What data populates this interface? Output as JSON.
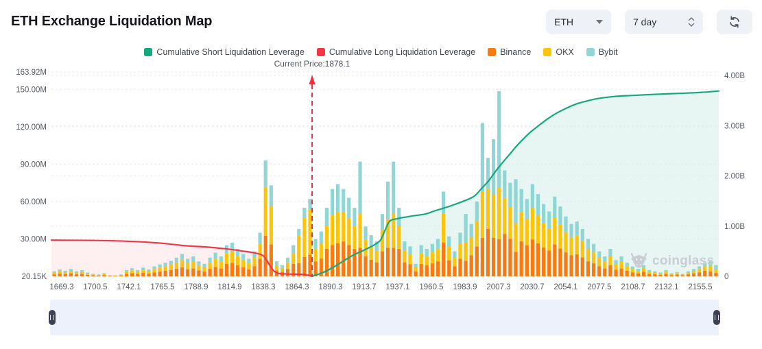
{
  "header": {
    "title": "ETH Exchange Liquidation Map"
  },
  "controls": {
    "symbol_value": "ETH",
    "period_value": "7 day"
  },
  "watermark": {
    "text": "coinglass"
  },
  "legend": {
    "items": [
      {
        "label": "Cumulative Short Liquidation Leverage",
        "color": "#14a87f"
      },
      {
        "label": "Cumulative Long Liquidation Leverage",
        "color": "#f23645"
      },
      {
        "label": "Binance",
        "color": "#f97b0f"
      },
      {
        "label": "OKX",
        "color": "#fcc40a"
      },
      {
        "label": "Bybit",
        "color": "#8fd6d5"
      }
    ]
  },
  "chart_data": {
    "type": "bar",
    "stacked": true,
    "title": "ETH Exchange Liquidation Map",
    "legend_position": "top",
    "grid": "dashed",
    "current_price": {
      "label": "Current Price:1878.1",
      "value": 1878.1,
      "frac": 0.3906,
      "color": "#ee303e"
    },
    "x_axis": {
      "labels": [
        "1669.3",
        "1700.5",
        "1742.1",
        "1765.5",
        "1788.9",
        "1814.9",
        "1838.3",
        "1864.3",
        "1890.3",
        "1913.7",
        "1937.1",
        "1960.5",
        "1983.9",
        "2007.3",
        "2030.7",
        "2054.1",
        "2077.5",
        "2108.7",
        "2132.1",
        "2155.5"
      ],
      "first_frac": 0.0154,
      "step_frac": 0.05036
    },
    "left_axis": {
      "unit": "M",
      "max": 163.92,
      "ticks": [
        {
          "label": "163.92M",
          "v": 163.92
        },
        {
          "label": "150.00M",
          "v": 150
        },
        {
          "label": "120.00M",
          "v": 120
        },
        {
          "label": "90.00M",
          "v": 90
        },
        {
          "label": "60.00M",
          "v": 60
        },
        {
          "label": "30.00M",
          "v": 30
        },
        {
          "label": "20.15K",
          "v": 0.02
        }
      ]
    },
    "right_axis": {
      "unit": "B",
      "max": 4,
      "ticks": [
        {
          "label": "4.00B",
          "v": 4
        },
        {
          "label": "3.00B",
          "v": 3
        },
        {
          "label": "2.00B",
          "v": 2
        },
        {
          "label": "1.00B",
          "v": 1
        },
        {
          "label": "0",
          "v": 0
        }
      ]
    },
    "bar_series": {
      "names": [
        "Binance",
        "OKX",
        "Bybit"
      ],
      "colors": [
        "#f97b0f",
        "#fcc40a",
        "#8fd6d5"
      ],
      "unit": "M",
      "stacks": [
        [
          1.6,
          1.4,
          1.0
        ],
        [
          2.2,
          1.9,
          1.4
        ],
        [
          1.8,
          1.5,
          1.2
        ],
        [
          2.4,
          2.0,
          1.6
        ],
        [
          1.6,
          1.4,
          1.0
        ],
        [
          2.0,
          1.7,
          1.3
        ],
        [
          1.2,
          1.0,
          0.8
        ],
        [
          0.8,
          0.7,
          0.5
        ],
        [
          0.6,
          0.5,
          0.4
        ],
        [
          1.0,
          0.9,
          0.6
        ],
        [
          0.4,
          0.3,
          0.3
        ],
        [
          0.3,
          0.3,
          0.2
        ],
        [
          0.6,
          0.5,
          0.4
        ],
        [
          2.0,
          1.7,
          1.3
        ],
        [
          2.6,
          2.2,
          1.7
        ],
        [
          2.0,
          1.7,
          1.3
        ],
        [
          2.8,
          2.4,
          1.8
        ],
        [
          2.2,
          1.9,
          1.4
        ],
        [
          3.2,
          2.7,
          2.1
        ],
        [
          3.8,
          3.2,
          2.5
        ],
        [
          4.4,
          3.7,
          2.9
        ],
        [
          5.0,
          4.3,
          3.2
        ],
        [
          6.0,
          5.1,
          3.9
        ],
        [
          7.2,
          6.1,
          4.7
        ],
        [
          5.6,
          4.8,
          3.6
        ],
        [
          6.4,
          5.4,
          4.2
        ],
        [
          4.8,
          4.1,
          3.1
        ],
        [
          4.0,
          3.4,
          2.6
        ],
        [
          6.0,
          5.1,
          3.9
        ],
        [
          7.6,
          6.5,
          4.9
        ],
        [
          6.4,
          5.4,
          4.2
        ],
        [
          10.0,
          8.5,
          6.5
        ],
        [
          10.8,
          9.2,
          7.0
        ],
        [
          8.8,
          7.5,
          5.7
        ],
        [
          7.2,
          6.1,
          4.7
        ],
        [
          5.6,
          4.8,
          3.6
        ],
        [
          8.0,
          6.8,
          5.2
        ],
        [
          14.0,
          11.9,
          9.1
        ],
        [
          32.6,
          39.1,
          21.3
        ],
        [
          25.6,
          30.7,
          16.7
        ],
        [
          4.8,
          4.1,
          3.1
        ],
        [
          3.6,
          3.1,
          2.3
        ],
        [
          6.0,
          5.1,
          3.9
        ],
        [
          10.0,
          8.5,
          6.5
        ],
        [
          10.6,
          22.0,
          5.4
        ],
        [
          15.4,
          31.9,
          7.7
        ],
        [
          17.4,
          36.0,
          8.6
        ],
        [
          12.0,
          10.2,
          7.8
        ],
        [
          14.4,
          12.2,
          9.4
        ],
        [
          22.0,
          18.7,
          14.3
        ],
        [
          25.2,
          23.8,
          21.0
        ],
        [
          26.6,
          25.2,
          22.2
        ],
        [
          28.0,
          23.8,
          18.2
        ],
        [
          25.2,
          21.4,
          16.4
        ],
        [
          22.0,
          18.7,
          14.3
        ],
        [
          23.0,
          27.6,
          41.4
        ],
        [
          16.0,
          13.6,
          10.4
        ],
        [
          13.2,
          11.2,
          8.6
        ],
        [
          11.2,
          9.5,
          7.3
        ],
        [
          20.0,
          17.0,
          13.0
        ],
        [
          22.8,
          22.8,
          30.4
        ],
        [
          23.0,
          27.6,
          41.4
        ],
        [
          22.0,
          18.7,
          14.3
        ],
        [
          11.2,
          9.5,
          7.3
        ],
        [
          9.6,
          8.2,
          6.2
        ],
        [
          4.0,
          3.4,
          2.6
        ],
        [
          10.0,
          8.5,
          6.5
        ],
        [
          8.8,
          7.5,
          5.7
        ],
        [
          10.4,
          8.8,
          6.8
        ],
        [
          12.0,
          10.2,
          7.8
        ],
        [
          27.2,
          23.1,
          17.7
        ],
        [
          12.8,
          10.9,
          8.3
        ],
        [
          8.0,
          6.8,
          5.2
        ],
        [
          14.0,
          11.9,
          9.1
        ],
        [
          12.5,
          15.0,
          22.5
        ],
        [
          16.8,
          14.3,
          10.9
        ],
        [
          24.0,
          20.4,
          15.6
        ],
        [
          30.8,
          36.9,
          55.3
        ],
        [
          38.0,
          32.3,
          24.7
        ],
        [
          30.8,
          35.2,
          44.0
        ],
        [
          29.7,
          41.6,
          77.2
        ],
        [
          34.0,
          28.9,
          22.1
        ],
        [
          30.0,
          25.5,
          19.5
        ],
        [
          19.5,
          23.4,
          35.1
        ],
        [
          28.0,
          23.8,
          18.2
        ],
        [
          24.8,
          21.1,
          16.1
        ],
        [
          29.6,
          25.2,
          19.2
        ],
        [
          26.4,
          22.4,
          17.2
        ],
        [
          23.2,
          19.7,
          15.1
        ],
        [
          20.8,
          17.7,
          13.5
        ],
        [
          25.6,
          21.8,
          16.6
        ],
        [
          22.4,
          19.0,
          14.6
        ],
        [
          19.2,
          16.3,
          12.5
        ],
        [
          16.8,
          14.3,
          10.9
        ],
        [
          17.6,
          15.0,
          11.4
        ],
        [
          15.2,
          12.9,
          9.9
        ],
        [
          12.0,
          10.2,
          7.8
        ],
        [
          10.4,
          8.8,
          6.8
        ],
        [
          8.0,
          6.8,
          5.2
        ],
        [
          6.4,
          5.4,
          4.2
        ],
        [
          8.8,
          7.5,
          5.7
        ],
        [
          5.2,
          4.4,
          3.4
        ],
        [
          6.4,
          5.4,
          4.2
        ],
        [
          4.4,
          3.7,
          2.9
        ],
        [
          3.2,
          2.7,
          2.1
        ],
        [
          2.4,
          2.0,
          1.6
        ],
        [
          3.6,
          3.1,
          2.3
        ],
        [
          2.0,
          1.7,
          1.3
        ],
        [
          1.6,
          1.4,
          1.0
        ],
        [
          1.2,
          1.0,
          0.8
        ],
        [
          2.0,
          1.7,
          1.3
        ],
        [
          1.0,
          0.9,
          0.6
        ],
        [
          1.4,
          1.2,
          0.9
        ],
        [
          0.8,
          0.7,
          0.5
        ],
        [
          1.6,
          1.4,
          1.0
        ],
        [
          2.4,
          2.0,
          1.6
        ],
        [
          3.2,
          2.7,
          2.1
        ],
        [
          4.4,
          3.7,
          2.9
        ],
        [
          3.9,
          4.3,
          4.8
        ],
        [
          2.7,
          3.0,
          3.3
        ]
      ]
    },
    "lines": [
      {
        "name": "Cumulative Long Liquidation Leverage",
        "axis": "right",
        "unit": "B",
        "color": "#f23645",
        "fill": "rgba(242,54,69,0.08)",
        "points": [
          [
            0.0,
            0.72
          ],
          [
            0.06,
            0.715
          ],
          [
            0.11,
            0.7
          ],
          [
            0.16,
            0.665
          ],
          [
            0.2,
            0.61
          ],
          [
            0.231,
            0.585
          ],
          [
            0.252,
            0.56
          ],
          [
            0.272,
            0.53
          ],
          [
            0.288,
            0.5
          ],
          [
            0.303,
            0.47
          ],
          [
            0.316,
            0.42
          ],
          [
            0.322,
            0.33
          ],
          [
            0.328,
            0.2
          ],
          [
            0.334,
            0.1
          ],
          [
            0.342,
            0.055
          ],
          [
            0.355,
            0.045
          ],
          [
            0.375,
            0.04
          ],
          [
            0.385,
            0.02
          ],
          [
            0.3906,
            0.0
          ]
        ]
      },
      {
        "name": "Cumulative Short Liquidation Leverage",
        "axis": "right",
        "unit": "B",
        "color": "#14a87f",
        "fill": "rgba(20,168,127,0.10)",
        "points": [
          [
            0.3906,
            0.0
          ],
          [
            0.406,
            0.07
          ],
          [
            0.421,
            0.17
          ],
          [
            0.437,
            0.3
          ],
          [
            0.452,
            0.42
          ],
          [
            0.468,
            0.52
          ],
          [
            0.483,
            0.62
          ],
          [
            0.493,
            0.72
          ],
          [
            0.5,
            0.92
          ],
          [
            0.507,
            1.1
          ],
          [
            0.519,
            1.15
          ],
          [
            0.54,
            1.2
          ],
          [
            0.56,
            1.24
          ],
          [
            0.576,
            1.31
          ],
          [
            0.591,
            1.37
          ],
          [
            0.606,
            1.44
          ],
          [
            0.622,
            1.52
          ],
          [
            0.634,
            1.6
          ],
          [
            0.644,
            1.74
          ],
          [
            0.655,
            1.9
          ],
          [
            0.665,
            2.08
          ],
          [
            0.675,
            2.25
          ],
          [
            0.686,
            2.42
          ],
          [
            0.696,
            2.58
          ],
          [
            0.706,
            2.72
          ],
          [
            0.716,
            2.85
          ],
          [
            0.73,
            3.0
          ],
          [
            0.743,
            3.13
          ],
          [
            0.757,
            3.25
          ],
          [
            0.772,
            3.35
          ],
          [
            0.786,
            3.43
          ],
          [
            0.802,
            3.49
          ],
          [
            0.819,
            3.54
          ],
          [
            0.843,
            3.58
          ],
          [
            0.868,
            3.6
          ],
          [
            0.899,
            3.62
          ],
          [
            0.935,
            3.64
          ],
          [
            0.971,
            3.66
          ],
          [
            1.0,
            3.69
          ]
        ]
      }
    ]
  }
}
